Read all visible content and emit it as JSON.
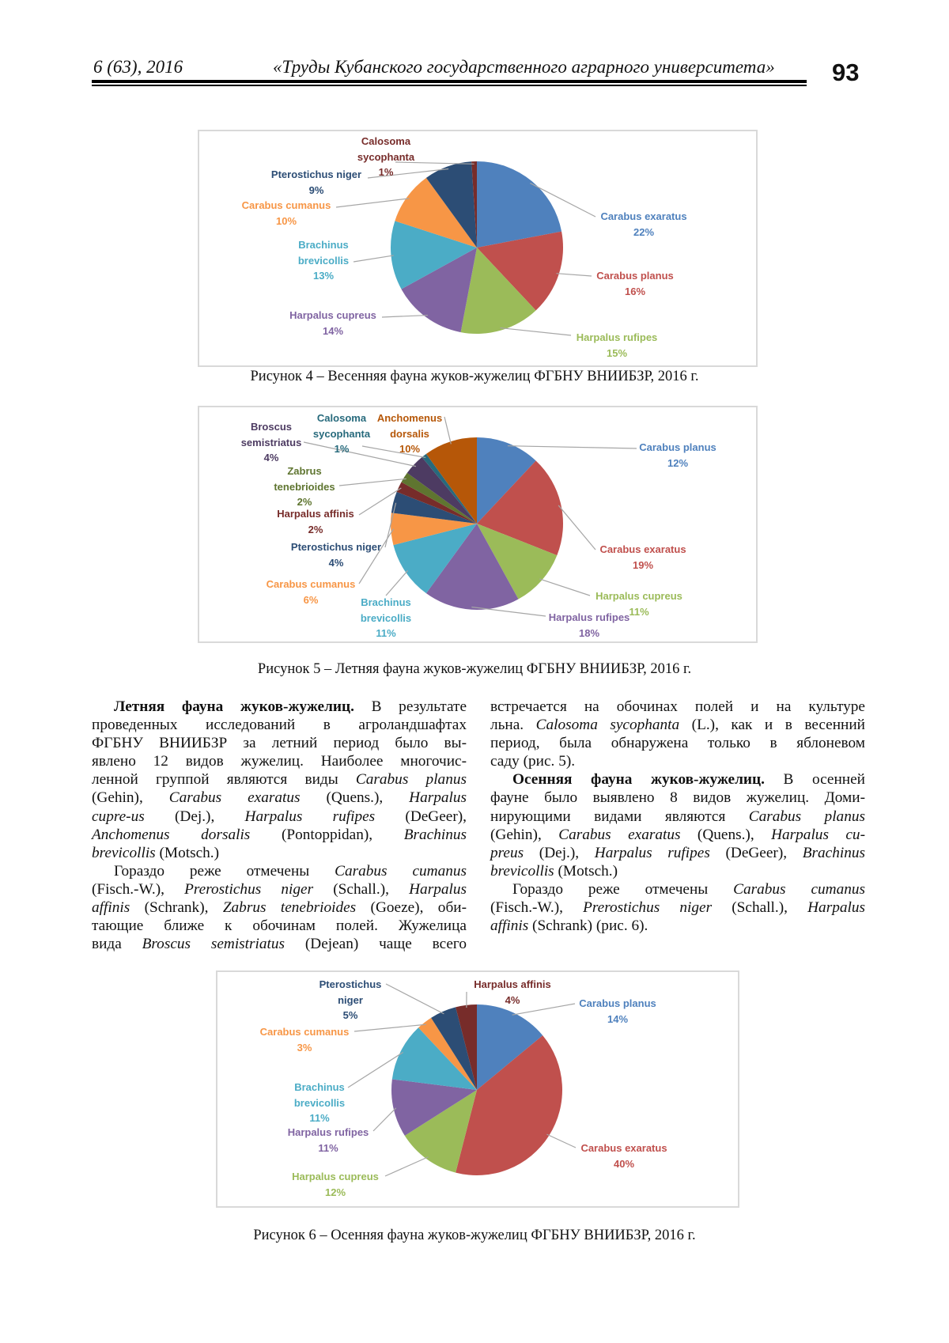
{
  "header": {
    "issue": "6 (63), 2016",
    "journal": "«Труды Кубанского государственного аграрного университета»",
    "page_number": "93"
  },
  "chart_data": [
    {
      "type": "pie",
      "caption": "Рисунок 4 – Весенняя фауна жуков-жужелиц ФГБНУ ВНИИБЗР, 2016 г.",
      "slices": [
        {
          "name": "Carabus exaratus",
          "value": 22,
          "label": "22%",
          "color": "#4f81bd"
        },
        {
          "name": "Carabus planus",
          "value": 16,
          "label": "16%",
          "color": "#c0504d"
        },
        {
          "name": "Harpalus rufipes",
          "value": 15,
          "label": "15%",
          "color": "#9bbb59"
        },
        {
          "name": "Harpalus cupreus",
          "value": 14,
          "label": "14%",
          "color": "#8064a2"
        },
        {
          "name": "Brachinus brevicollis",
          "value": 13,
          "label": "13%",
          "color": "#4bacc6"
        },
        {
          "name": "Carabus cumanus",
          "value": 10,
          "label": "10%",
          "color": "#f79646"
        },
        {
          "name": "Pterostichus niger",
          "value": 9,
          "label": "9%",
          "color": "#2c4d75"
        },
        {
          "name": "Calosoma sycophanta",
          "value": 1,
          "label": "1%",
          "color": "#772c2a"
        }
      ]
    },
    {
      "type": "pie",
      "caption": "Рисунок 5 – Летняя фауна жуков-жужелиц ФГБНУ ВНИИБЗР, 2016 г.",
      "slices": [
        {
          "name": "Carabus planus",
          "value": 12,
          "label": "12%",
          "color": "#4f81bd"
        },
        {
          "name": "Carabus exaratus",
          "value": 19,
          "label": "19%",
          "color": "#c0504d"
        },
        {
          "name": "Harpalus cupreus",
          "value": 11,
          "label": "11%",
          "color": "#9bbb59"
        },
        {
          "name": "Harpalus rufipes",
          "value": 18,
          "label": "18%",
          "color": "#8064a2"
        },
        {
          "name": "Brachinus brevicollis",
          "value": 11,
          "label": "11%",
          "color": "#4bacc6"
        },
        {
          "name": "Carabus cumanus",
          "value": 6,
          "label": "6%",
          "color": "#f79646"
        },
        {
          "name": "Pterostichus niger",
          "value": 4,
          "label": "4%",
          "color": "#2c4d75"
        },
        {
          "name": "Harpalus affinis",
          "value": 2,
          "label": "2%",
          "color": "#772c2a"
        },
        {
          "name": "Zabrus tenebrioides",
          "value": 2,
          "label": "2%",
          "color": "#5f7530"
        },
        {
          "name": "Broscus semistriatus",
          "value": 4,
          "label": "4%",
          "color": "#4d3b62"
        },
        {
          "name": "Calosoma sycophanta",
          "value": 1,
          "label": "1%",
          "color": "#276a7c"
        },
        {
          "name": "Anchomenus dorsalis",
          "value": 10,
          "label": "10%",
          "color": "#b65708"
        }
      ]
    },
    {
      "type": "pie",
      "caption": "Рисунок 6 – Осенняя фауна жуков-жужелиц ФГБНУ ВНИИБЗР, 2016 г.",
      "slices": [
        {
          "name": "Carabus planus",
          "value": 14,
          "label": "14%",
          "color": "#4f81bd"
        },
        {
          "name": "Carabus exaratus",
          "value": 40,
          "label": "40%",
          "color": "#c0504d"
        },
        {
          "name": "Harpalus cupreus",
          "value": 12,
          "label": "12%",
          "color": "#9bbb59"
        },
        {
          "name": "Harpalus rufipes",
          "value": 11,
          "label": "11%",
          "color": "#8064a2"
        },
        {
          "name": "Brachinus brevicollis",
          "value": 11,
          "label": "11%",
          "color": "#4bacc6"
        },
        {
          "name": "Carabus cumanus",
          "value": 3,
          "label": "3%",
          "color": "#f79646"
        },
        {
          "name": "Pterostichus niger",
          "value": 5,
          "label": "5%",
          "color": "#2c4d75"
        },
        {
          "name": "Harpalus affinis",
          "value": 4,
          "label": "4%",
          "color": "#772c2a"
        }
      ]
    }
  ],
  "body": {
    "left_column": [
      {
        "indent": true,
        "last": false,
        "runs": [
          {
            "s": "b",
            "t": "Летняя фауна жуков-жужелиц."
          },
          {
            "s": "",
            "t": " В результате"
          }
        ]
      },
      {
        "runs": [
          {
            "s": "",
            "t": "проведенных исследований в агроландшафтах"
          }
        ]
      },
      {
        "runs": [
          {
            "s": "",
            "t": "ФГБНУ ВНИИБЗР за летний период было вы-"
          }
        ]
      },
      {
        "runs": [
          {
            "s": "",
            "t": "явлено 12 видов жужелиц. Наиболее многочис-"
          }
        ]
      },
      {
        "runs": [
          {
            "s": "",
            "t": "ленной группой являются виды "
          },
          {
            "s": "i",
            "t": "Carabus planus"
          }
        ]
      },
      {
        "runs": [
          {
            "s": "",
            "t": "(Gehin), "
          },
          {
            "s": "i",
            "t": "Carabus exaratus"
          },
          {
            "s": "",
            "t": " (Quens.), "
          },
          {
            "s": "i",
            "t": "Harpalus"
          }
        ]
      },
      {
        "runs": [
          {
            "s": "i",
            "t": "cupre-us"
          },
          {
            "s": "",
            "t": " (Dej.), "
          },
          {
            "s": "i",
            "t": "Harpalus rufipes"
          },
          {
            "s": "",
            "t": " (DeGeer),"
          }
        ]
      },
      {
        "runs": [
          {
            "s": "i",
            "t": "Anchomenus dorsalis"
          },
          {
            "s": "",
            "t": " (Pontoppidan), "
          },
          {
            "s": "i",
            "t": "Brachinus"
          }
        ]
      },
      {
        "last": true,
        "runs": [
          {
            "s": "i",
            "t": "brevicollis"
          },
          {
            "s": "",
            "t": " (Motsch.)"
          }
        ]
      },
      {
        "indent": true,
        "runs": [
          {
            "s": "",
            "t": "Гораздо реже отмечены "
          },
          {
            "s": "i",
            "t": "Carabus cumanus"
          }
        ]
      },
      {
        "runs": [
          {
            "s": "",
            "t": "(Fisch.-W.), "
          },
          {
            "s": "i",
            "t": "Prerostichus niger"
          },
          {
            "s": "",
            "t": " (Schall.), "
          },
          {
            "s": "i",
            "t": "Harpalus"
          }
        ]
      },
      {
        "runs": [
          {
            "s": "i",
            "t": "affinis"
          },
          {
            "s": "",
            "t": " (Schrank), "
          },
          {
            "s": "i",
            "t": "Zabrus tenebrioides"
          },
          {
            "s": "",
            "t": " (Goeze), оби-"
          }
        ]
      },
      {
        "runs": [
          {
            "s": "",
            "t": "тающие ближе к обочинам полей. Жужелица"
          }
        ]
      },
      {
        "runs": [
          {
            "s": "",
            "t": "вида "
          },
          {
            "s": "i",
            "t": "Broscus semistriatus"
          },
          {
            "s": "",
            "t": " (Dejean) чаще всего"
          }
        ]
      }
    ],
    "right_column": [
      {
        "runs": [
          {
            "s": "",
            "t": "встречается на обочинах полей и на культуре"
          }
        ]
      },
      {
        "runs": [
          {
            "s": "",
            "t": "льна. "
          },
          {
            "s": "i",
            "t": "Calosoma sycophanta"
          },
          {
            "s": "",
            "t": " (L.), как и в весенний"
          }
        ]
      },
      {
        "runs": [
          {
            "s": "",
            "t": "период, была обнаружена только в яблоневом"
          }
        ]
      },
      {
        "last": true,
        "runs": [
          {
            "s": "",
            "t": "саду (рис. 5)."
          }
        ]
      },
      {
        "indent": true,
        "runs": [
          {
            "s": "b",
            "t": "Осенняя фауна жуков-жужелиц."
          },
          {
            "s": "",
            "t": " В осенней"
          }
        ]
      },
      {
        "runs": [
          {
            "s": "",
            "t": "фауне было выявлено 8 видов жужелиц. Доми-"
          }
        ]
      },
      {
        "runs": [
          {
            "s": "",
            "t": "нирующими видами являются "
          },
          {
            "s": "i",
            "t": "Carabus planus"
          }
        ]
      },
      {
        "runs": [
          {
            "s": "",
            "t": "(Gehin), "
          },
          {
            "s": "i",
            "t": "Carabus exaratus"
          },
          {
            "s": "",
            "t": " (Quens.), "
          },
          {
            "s": "i",
            "t": "Harpalus cu-"
          }
        ]
      },
      {
        "runs": [
          {
            "s": "i",
            "t": "preus"
          },
          {
            "s": "",
            "t": " (Dej.), "
          },
          {
            "s": "i",
            "t": "Harpalus rufipes"
          },
          {
            "s": "",
            "t": " (DeGeer), "
          },
          {
            "s": "i",
            "t": "Brachinus"
          }
        ]
      },
      {
        "last": true,
        "runs": [
          {
            "s": "i",
            "t": "brevicollis"
          },
          {
            "s": "",
            "t": " (Motsch.)"
          }
        ]
      },
      {
        "indent": true,
        "runs": [
          {
            "s": "",
            "t": "Гораздо реже отмечены "
          },
          {
            "s": "i",
            "t": "Carabus cumanus"
          }
        ]
      },
      {
        "runs": [
          {
            "s": "",
            "t": "(Fisch.-W.), "
          },
          {
            "s": "i",
            "t": "Prerostichus niger"
          },
          {
            "s": "",
            "t": " (Schall.), "
          },
          {
            "s": "i",
            "t": "Harpalus"
          }
        ]
      },
      {
        "last": true,
        "runs": [
          {
            "s": "i",
            "t": "affinis"
          },
          {
            "s": "",
            "t": " (Schrank) (рис. 6)."
          }
        ]
      }
    ]
  }
}
